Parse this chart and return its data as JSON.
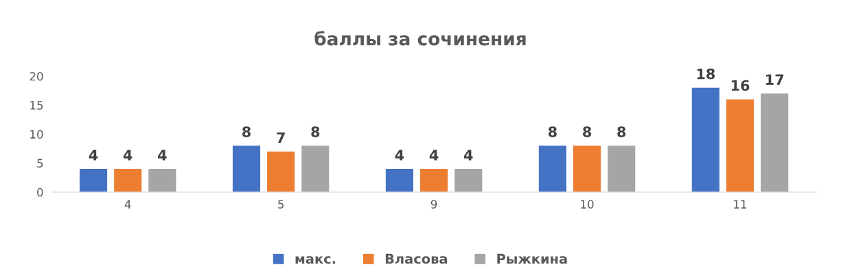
{
  "chart_data": {
    "type": "bar",
    "title": "баллы за сочинения",
    "categories": [
      "4",
      "5",
      "9",
      "10",
      "11"
    ],
    "series": [
      {
        "name": "макс.",
        "color": "#4472c4",
        "values": [
          4,
          8,
          4,
          8,
          18
        ]
      },
      {
        "name": "Власова",
        "color": "#ed7d31",
        "values": [
          4,
          7,
          4,
          8,
          16
        ]
      },
      {
        "name": "Рыжкина",
        "color": "#a5a5a5",
        "values": [
          4,
          8,
          4,
          8,
          17
        ]
      }
    ],
    "ylim": [
      0,
      20
    ],
    "yticks": [
      0,
      5,
      10,
      15,
      20
    ],
    "grid": false,
    "legend": "bottom",
    "data_labels": true
  }
}
